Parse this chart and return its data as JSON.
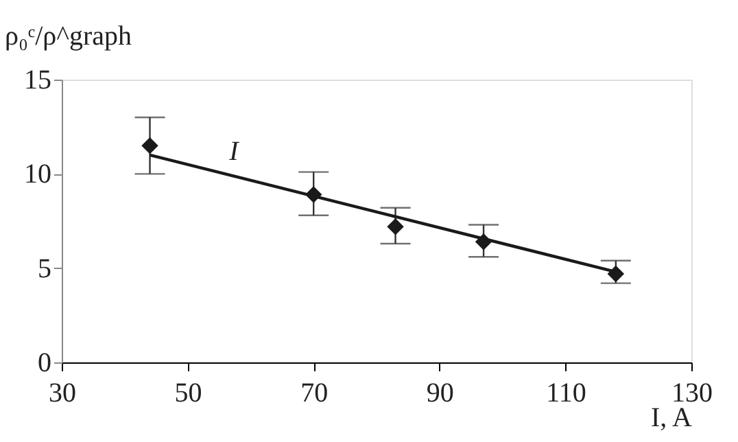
{
  "chart_data": {
    "type": "scatter",
    "xlabel": "I, A",
    "ylabel": "ρ₀ᶜ/ρ^graph",
    "series": [
      {
        "color": "#1a1a1a",
        "marker": "diamond",
        "x": [
          44,
          70,
          83,
          97,
          118
        ],
        "values": [
          11.5,
          8.9,
          7.2,
          6.4,
          4.7
        ],
        "errors": [
          [
            10.0,
            13.0
          ],
          [
            7.8,
            10.1
          ],
          [
            6.3,
            8.2
          ],
          [
            5.6,
            7.3
          ],
          [
            4.2,
            5.4
          ]
        ]
      },
      {
        "type": "line",
        "name": "I",
        "color": "#1a1a1a",
        "line_style": "solid",
        "x": [
          44,
          118
        ],
        "values": [
          11.0,
          4.8
        ]
      }
    ],
    "xlim": [
      30,
      130
    ],
    "xticks": [
      30,
      50,
      70,
      90,
      110,
      130
    ],
    "ylim": [
      0,
      15
    ],
    "yticks": [
      0,
      5,
      10,
      15
    ]
  }
}
